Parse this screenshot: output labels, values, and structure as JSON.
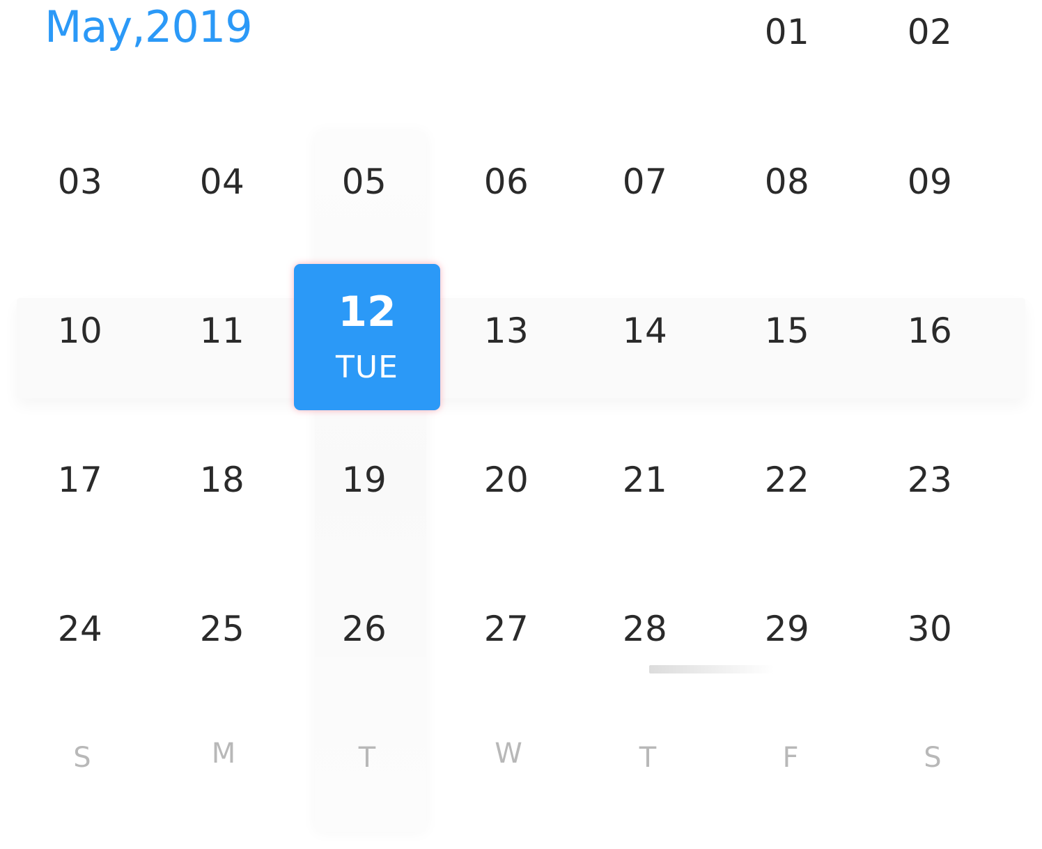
{
  "header": {
    "month_year": "May,2019"
  },
  "calendar": {
    "days": [
      "01",
      "02",
      "03",
      "04",
      "05",
      "06",
      "07",
      "08",
      "09",
      "10",
      "11",
      "12",
      "13",
      "14",
      "15",
      "16",
      "17",
      "18",
      "19",
      "20",
      "21",
      "22",
      "23",
      "24",
      "25",
      "26",
      "27",
      "28",
      "29",
      "30"
    ],
    "selected": {
      "day": "12",
      "weekday": "TUE"
    },
    "weekdays": [
      "S",
      "M",
      "T",
      "W",
      "T",
      "F",
      "S"
    ]
  },
  "colors": {
    "accent": "#2b99f7",
    "day_text": "#2a2a2a",
    "weekday_text": "#b8b8b8",
    "selected_text": "#ffffff"
  }
}
